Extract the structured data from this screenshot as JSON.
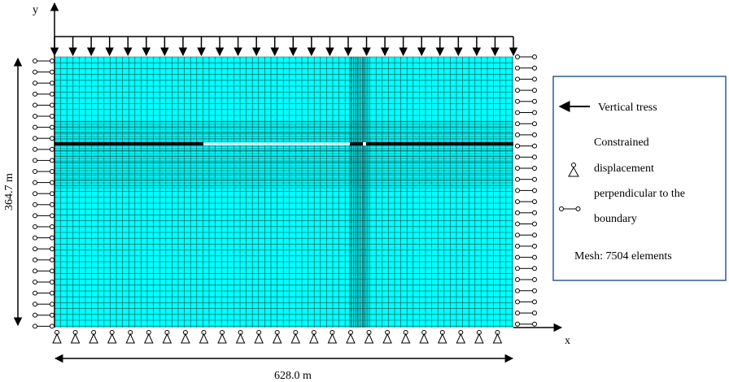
{
  "axes": {
    "y": "y",
    "x": "x"
  },
  "dimensions": {
    "height": "364.7 m",
    "width": "628.0 m"
  },
  "legend": {
    "load": "Vertical tress",
    "constraint": [
      "Constrained",
      "displacement",
      "perpendicular to the",
      "boundary"
    ],
    "mesh": "Mesh: 7504 elements"
  }
}
